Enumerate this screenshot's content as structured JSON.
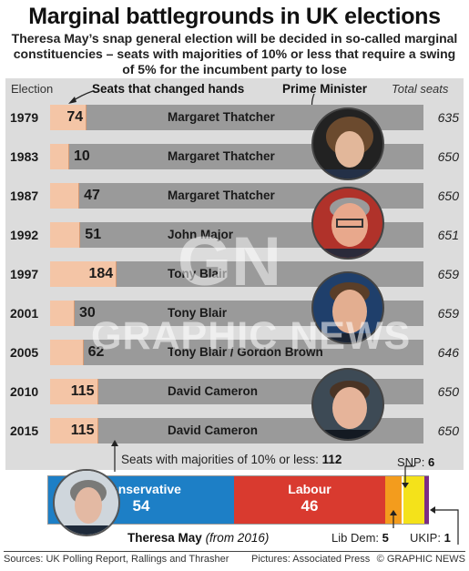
{
  "title": "Marginal battlegrounds in UK elections",
  "subtitle": "Theresa May’s snap general election will be decided in so-called marginal constituencies – seats with majorities of 10% or less that require a swing of 5% for the incumbent party to lose",
  "headers": {
    "election": "Election",
    "changed": "Seats that changed hands",
    "pm": "Prime Minister",
    "total": "Total seats"
  },
  "watermark": {
    "text": "GRAPHIC NEWS",
    "logo": "GN"
  },
  "chart_data": [
    {
      "type": "bar",
      "title": "",
      "categories": [
        "1979",
        "1983",
        "1987",
        "1992",
        "1997",
        "2001",
        "2005",
        "2010",
        "2015"
      ],
      "series": [
        {
          "name": "Seats that changed hands",
          "values": [
            74,
            10,
            47,
            51,
            184,
            30,
            62,
            115,
            115
          ]
        }
      ],
      "prime_ministers": [
        "Margaret Thatcher",
        "Margaret Thatcher",
        "Margaret Thatcher",
        "John Major",
        "Tony Blair",
        "Tony Blair",
        "Tony Blair / Gordon Brown",
        "David Cameron",
        "David Cameron"
      ],
      "total_seats": [
        635,
        650,
        650,
        651,
        659,
        659,
        646,
        650,
        650
      ],
      "xlabel": "Election",
      "ylabel": "",
      "xlim": [
        0,
        659
      ]
    },
    {
      "type": "bar",
      "title": "Seats with majorities of 10% or less",
      "total": 112,
      "categories": [
        "Conservative",
        "Labour",
        "Lib Dem",
        "SNP",
        "UKIP"
      ],
      "values": [
        54,
        46,
        5,
        6,
        1
      ],
      "colors": [
        "#1d7fc6",
        "#d93a2f",
        "#f39c1d",
        "#f4e21a",
        "#7b2c86"
      ]
    }
  ],
  "majority": {
    "label": "Seats with majorities of 10% or less:",
    "value": "112"
  },
  "parties": {
    "con_name": "Conservative",
    "con_value": "54",
    "lab_name": "Labour",
    "lab_value": "46",
    "ld_name": "Lib Dem:",
    "ld_value": "5",
    "snp_name": "SNP:",
    "snp_value": "6",
    "ukip_name": "UKIP:",
    "ukip_value": "1"
  },
  "may_caption": {
    "name": "Theresa May",
    "note": "(from 2016)"
  },
  "footer": {
    "sources": "Sources: UK Polling Report, Rallings and Thrasher",
    "pictures": "Pictures: Associated Press",
    "copyright": "© GRAPHIC NEWS"
  }
}
